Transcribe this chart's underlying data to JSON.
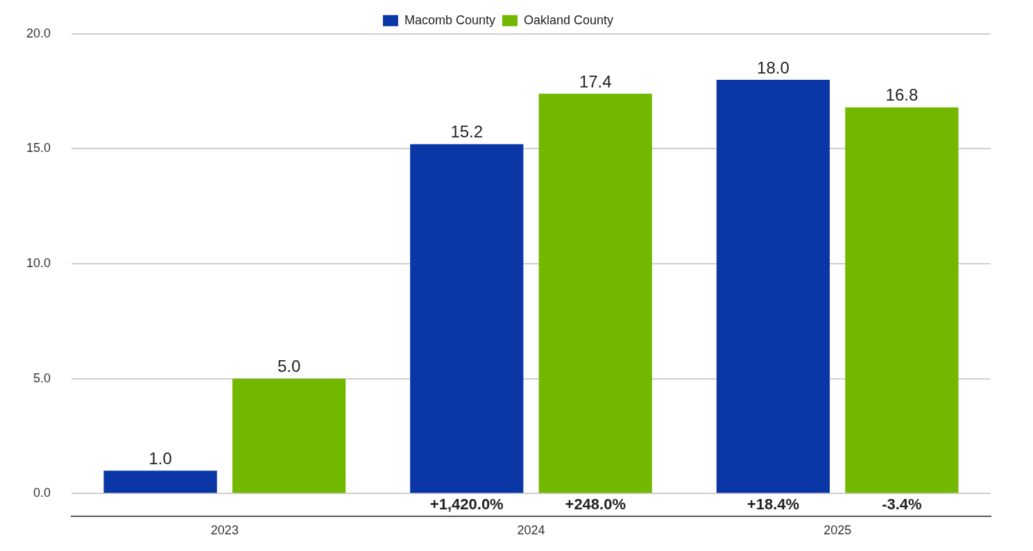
{
  "chart_data": {
    "type": "bar",
    "categories": [
      "2023",
      "2024",
      "2025"
    ],
    "series": [
      {
        "name": "Macomb County",
        "color": "#0b36a6",
        "values": [
          1.0,
          15.2,
          18.0
        ],
        "value_labels": [
          "1.0",
          "15.2",
          "18.0"
        ]
      },
      {
        "name": "Oakland County",
        "color": "#72b800",
        "values": [
          5.0,
          17.4,
          16.8
        ],
        "value_labels": [
          "5.0",
          "17.4",
          "16.8"
        ]
      }
    ],
    "ylim": [
      -1,
      20
    ],
    "yticks": [
      {
        "value": 0,
        "label": "0.0"
      },
      {
        "value": 5,
        "label": "5.0"
      },
      {
        "value": 10,
        "label": "10.0"
      },
      {
        "value": 15,
        "label": "15.0"
      },
      {
        "value": 20,
        "label": "20.0"
      }
    ],
    "grid": "y",
    "legend": "top",
    "annotations": [
      "+1,420.0%",
      "+248.0%",
      "+18.4%",
      "-3.4%"
    ]
  }
}
